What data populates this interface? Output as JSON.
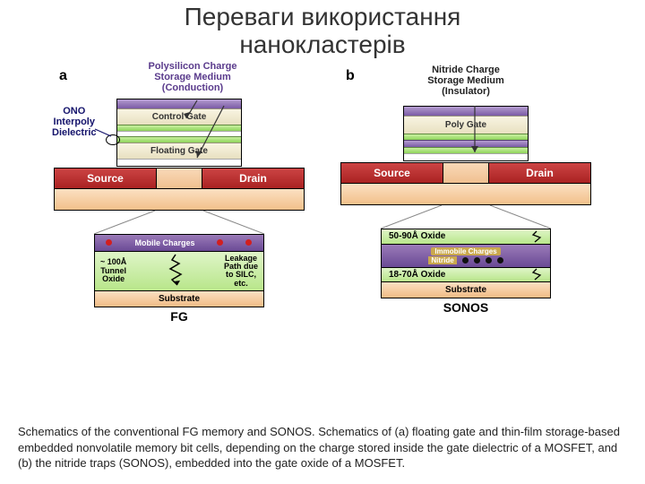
{
  "title_line1": "Переваги використання",
  "title_line2": "нанокластерів",
  "caption": "Schematics of the conventional FG memory and SONOS. Schematics of (a) floating gate and thin-film storage-based embedded nonvolatile memory bit cells, depending on the charge stored inside the gate dielectric of a MOSFET, and (b) the nitride traps (SONOS), embedded into the gate oxide of a MOSFET.",
  "colors": {
    "purple": "#9a7ab8",
    "purple_dark": "#6a4a95",
    "green": "#9be070",
    "cream": "#f3eedd",
    "red": "#c83030",
    "peach_light": "#fbe0c2",
    "peach_dark": "#f0bb85",
    "gold": "#caa84e",
    "gold_text": "#fff",
    "white": "#ffffff",
    "ono_text": "#14136b",
    "top_text": "#5a3b8c",
    "dot_red": "#d21f1f",
    "dot_black": "#111"
  },
  "a": {
    "panel": "a",
    "side_label": "ONO\nInterpoly\nDielectric",
    "top_label": "Polysilicon Charge\nStorage Medium\n(Conduction)",
    "stack": [
      {
        "text": "",
        "bg": "purple",
        "h": 10
      },
      {
        "text": "Control Gate",
        "bg": "cream",
        "h": 18
      },
      {
        "text": "",
        "bg": "green",
        "h": 7
      },
      {
        "text": "",
        "bg": "white",
        "h": 6
      },
      {
        "text": "",
        "bg": "green",
        "h": 7
      },
      {
        "text": "Floating Gate",
        "bg": "cream",
        "h": 18
      },
      {
        "text": "",
        "bg": "white",
        "h": 8
      }
    ],
    "source": "Source",
    "drain": "Drain",
    "zoom": {
      "mobile": "Mobile Charges",
      "tunnel": "~ 100Å\nTunnel\nOxide",
      "leak": "Leakage\nPath due\nto SILC,\netc.",
      "substrate": "Substrate"
    },
    "sub": "FG"
  },
  "b": {
    "panel": "b",
    "top_label": "Nitride Charge\nStorage Medium\n(Insulator)",
    "stack": [
      {
        "text": "",
        "bg": "purple",
        "h": 10
      },
      {
        "text": "Poly Gate",
        "bg": "cream",
        "h": 20
      },
      {
        "text": "",
        "bg": "green",
        "h": 7
      },
      {
        "text": "",
        "bg": "purple",
        "h": 8
      },
      {
        "text": "",
        "bg": "green",
        "h": 7
      },
      {
        "text": "",
        "bg": "white",
        "h": 8
      }
    ],
    "source": "Source",
    "drain": "Drain",
    "zoom": {
      "top_oxide": "50-90Å Oxide",
      "immobile": "Immobile Charges",
      "nitride": "Nitride",
      "bot_oxide": "18-70Å Oxide",
      "substrate": "Substrate"
    },
    "sub": "SONOS"
  }
}
